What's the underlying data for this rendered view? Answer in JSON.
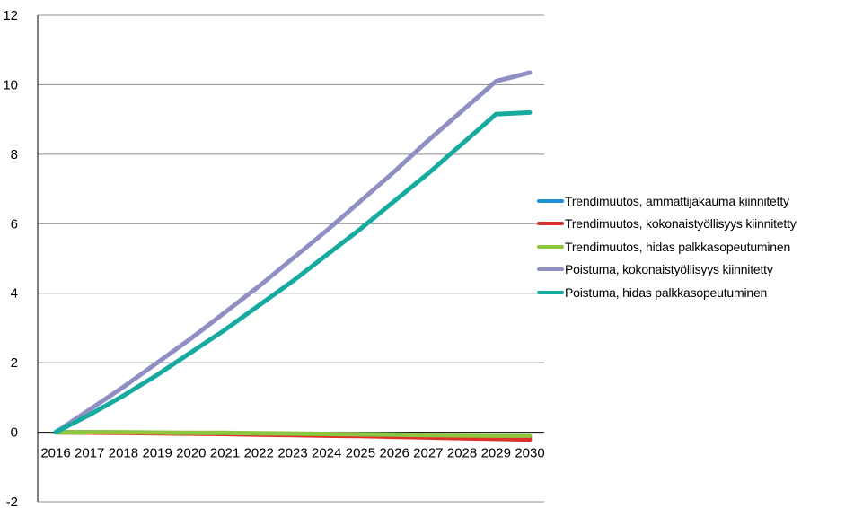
{
  "chart_data": {
    "type": "line",
    "title": "",
    "xlabel": "",
    "ylabel": "",
    "ylim": [
      -2,
      12
    ],
    "yticks": [
      -2,
      0,
      2,
      4,
      6,
      8,
      10,
      12
    ],
    "grid": true,
    "legend_position": "right",
    "x": [
      "2016",
      "2017",
      "2018",
      "2019",
      "2020",
      "2021",
      "2022",
      "2023",
      "2024",
      "2025",
      "2026",
      "2027",
      "2028",
      "2029",
      "2030"
    ],
    "series": [
      {
        "name": "Trendimuutos, ammattijakauma kiinnitetty",
        "color": "#1f90d0",
        "values": [
          0,
          0,
          -0.01,
          -0.02,
          -0.03,
          -0.04,
          -0.05,
          -0.06,
          -0.07,
          -0.08,
          -0.09,
          -0.1,
          -0.11,
          -0.12,
          -0.13
        ]
      },
      {
        "name": "Trendimuutos, kokonaistyöllisyys kiinnitetty",
        "color": "#e0302a",
        "values": [
          0,
          -0.01,
          -0.02,
          -0.03,
          -0.04,
          -0.05,
          -0.07,
          -0.08,
          -0.1,
          -0.11,
          -0.13,
          -0.15,
          -0.17,
          -0.19,
          -0.21
        ]
      },
      {
        "name": "Trendimuutos, hidas palkkasopeutuminen",
        "color": "#8ec63f",
        "values": [
          0,
          0,
          0,
          -0.01,
          -0.02,
          -0.02,
          -0.03,
          -0.04,
          -0.05,
          -0.06,
          -0.07,
          -0.08,
          -0.09,
          -0.1,
          -0.1
        ]
      },
      {
        "name": "Poistuma, kokonaistyöllisyys kiinnitetty",
        "color": "#8f8fc4",
        "values": [
          0,
          0.65,
          1.3,
          2.0,
          2.7,
          3.45,
          4.2,
          5.0,
          5.8,
          6.65,
          7.5,
          8.4,
          9.25,
          10.1,
          10.35
        ]
      },
      {
        "name": "Poistuma, hidas palkkasopeutuminen",
        "color": "#16aaa0",
        "values": [
          0,
          0.5,
          1.05,
          1.65,
          2.3,
          2.95,
          3.65,
          4.35,
          5.1,
          5.85,
          6.65,
          7.45,
          8.3,
          9.15,
          9.2
        ]
      }
    ]
  }
}
